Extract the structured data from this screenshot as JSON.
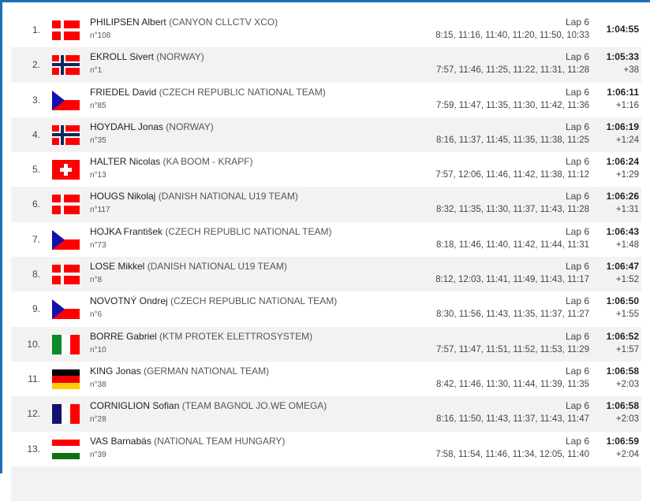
{
  "colors": {
    "frame": "#1d6fb8",
    "row_alt": "#f2f2f2"
  },
  "riders": [
    {
      "rank": "1.",
      "flag": "denmark",
      "name": "PHILIPSEN Albert",
      "team": "(CANYON CLLCTV XCO)",
      "number": "n°108",
      "lap": "Lap 6",
      "splits": "8:15, 11:16, 11:40, 11:20, 11:50, 10:33",
      "time": "1:04:55",
      "gap": ""
    },
    {
      "rank": "2.",
      "flag": "norway",
      "name": "EKROLL Sivert",
      "team": "(NORWAY)",
      "number": "n°1",
      "lap": "Lap 6",
      "splits": "7:57, 11:46, 11:25, 11:22, 11:31, 11:28",
      "time": "1:05:33",
      "gap": "+38"
    },
    {
      "rank": "3.",
      "flag": "czech",
      "name": "FRIEDEL David",
      "team": "(CZECH REPUBLIC NATIONAL TEAM)",
      "number": "n°85",
      "lap": "Lap 6",
      "splits": "7:59, 11:47, 11:35, 11:30, 11:42, 11:36",
      "time": "1:06:11",
      "gap": "+1:16"
    },
    {
      "rank": "4.",
      "flag": "norway",
      "name": "HOYDAHL Jonas",
      "team": "(NORWAY)",
      "number": "n°35",
      "lap": "Lap 6",
      "splits": "8:16, 11:37, 11:45, 11:35, 11:38, 11:25",
      "time": "1:06:19",
      "gap": "+1:24"
    },
    {
      "rank": "5.",
      "flag": "switzerland",
      "name": "HALTER Nicolas",
      "team": "(KA BOOM - KRAPF)",
      "number": "n°13",
      "lap": "Lap 6",
      "splits": "7:57, 12:06, 11:46, 11:42, 11:38, 11:12",
      "time": "1:06:24",
      "gap": "+1:29"
    },
    {
      "rank": "6.",
      "flag": "denmark",
      "name": "HOUGS Nikolaj",
      "team": "(DANISH NATIONAL U19 TEAM)",
      "number": "n°117",
      "lap": "Lap 6",
      "splits": "8:32, 11:35, 11:30, 11:37, 11:43, 11:28",
      "time": "1:06:26",
      "gap": "+1:31"
    },
    {
      "rank": "7.",
      "flag": "czech",
      "name": "HOJKA František",
      "team": "(CZECH REPUBLIC NATIONAL TEAM)",
      "number": "n°73",
      "lap": "Lap 6",
      "splits": "8:18, 11:46, 11:40, 11:42, 11:44, 11:31",
      "time": "1:06:43",
      "gap": "+1:48"
    },
    {
      "rank": "8.",
      "flag": "denmark",
      "name": "LOSE Mikkel",
      "team": "(DANISH NATIONAL U19 TEAM)",
      "number": "n°8",
      "lap": "Lap 6",
      "splits": "8:12, 12:03, 11:41, 11:49, 11:43, 11:17",
      "time": "1:06:47",
      "gap": "+1:52"
    },
    {
      "rank": "9.",
      "flag": "czech",
      "name": "NOVOTNÝ Ondrej",
      "team": "(CZECH REPUBLIC NATIONAL TEAM)",
      "number": "n°6",
      "lap": "Lap 6",
      "splits": "8:30, 11:56, 11:43, 11:35, 11:37, 11:27",
      "time": "1:06:50",
      "gap": "+1:55"
    },
    {
      "rank": "10.",
      "flag": "italy",
      "name": "BORRE Gabriel",
      "team": "(KTM PROTEK ELETTROSYSTEM)",
      "number": "n°10",
      "lap": "Lap 6",
      "splits": "7:57, 11:47, 11:51, 11:52, 11:53, 11:29",
      "time": "1:06:52",
      "gap": "+1:57"
    },
    {
      "rank": "11.",
      "flag": "germany",
      "name": "KING Jonas",
      "team": "(GERMAN NATIONAL TEAM)",
      "number": "n°38",
      "lap": "Lap 6",
      "splits": "8:42, 11:46, 11:30, 11:44, 11:39, 11:35",
      "time": "1:06:58",
      "gap": "+2:03"
    },
    {
      "rank": "12.",
      "flag": "france",
      "name": "CORNIGLION Sofian",
      "team": "(TEAM BAGNOL JO.WE OMEGA)",
      "number": "n°28",
      "lap": "Lap 6",
      "splits": "8:16, 11:50, 11:43, 11:37, 11:43, 11:47",
      "time": "1:06:58",
      "gap": "+2:03"
    },
    {
      "rank": "13.",
      "flag": "hungary",
      "name": "VAS Barnabás",
      "team": "(NATIONAL TEAM HUNGARY)",
      "number": "n°39",
      "lap": "Lap 6",
      "splits": "7:58, 11:54, 11:46, 11:34, 12:05, 11:40",
      "time": "1:06:59",
      "gap": "+2:04"
    }
  ]
}
